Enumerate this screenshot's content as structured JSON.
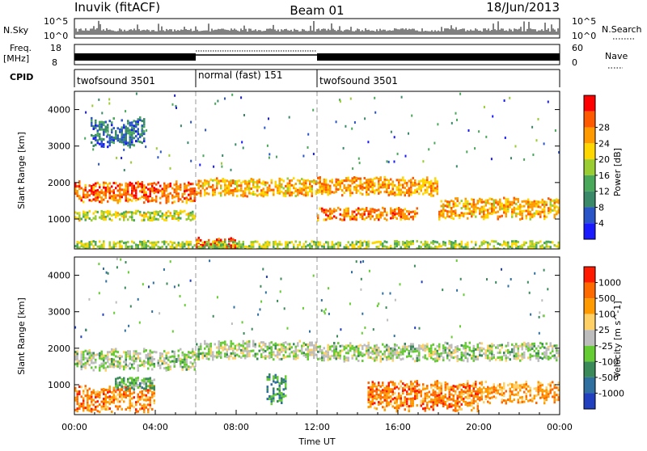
{
  "header": {
    "station": "Inuvik (fitACF)",
    "beam": "Beam 01",
    "date": "18/Jun/2013"
  },
  "top_panels": {
    "nsky_label": "N.Sky",
    "nsky_ticks": [
      "10^5",
      "10^0"
    ],
    "nsearch_label": "N.Search",
    "nsearch_ticks": [
      "10^5",
      "10^0"
    ],
    "freq_label": "Freq.",
    "freq_unit": "[MHz]",
    "freq_ticks": [
      "18",
      "8"
    ],
    "nave_label": "Nave",
    "nave_ticks": [
      "60",
      "0"
    ],
    "cpid_label": "CPID",
    "cpid_segments": [
      {
        "label": "twofsound 3501",
        "start_h": 0,
        "end_h": 6
      },
      {
        "label": "normal (fast) 151",
        "start_h": 6,
        "end_h": 12
      },
      {
        "label": "twofsound 3501",
        "start_h": 12,
        "end_h": 24
      }
    ]
  },
  "chart_data": [
    {
      "type": "heatmap",
      "name": "power",
      "ylabel": "Slant Range [km]",
      "xlabel": "",
      "xlim": [
        0,
        24
      ],
      "ylim": [
        180,
        4500
      ],
      "yticks": [
        "1000",
        "2000",
        "3000",
        "4000"
      ],
      "ytick_values": [
        1000,
        2000,
        3000,
        4000
      ],
      "colorbar_label": "Power [dB]",
      "colorbar_ticks": [
        "4",
        "8",
        "12",
        "16",
        "20",
        "24",
        "28"
      ],
      "colorbar_colors": [
        "#1a1aff",
        "#2a55c8",
        "#3a8a6a",
        "#4aa85a",
        "#9acd32",
        "#ffd700",
        "#ff9a00",
        "#ff5a00",
        "#ff0000"
      ],
      "bands": [
        {
          "start_h": 0.0,
          "end_h": 6.0,
          "center_km": 1750,
          "width_km": 500,
          "level": 0.85
        },
        {
          "start_h": 6.0,
          "end_h": 12.0,
          "center_km": 1900,
          "width_km": 400,
          "level": 0.7
        },
        {
          "start_h": 12.0,
          "end_h": 18.0,
          "center_km": 1900,
          "width_km": 450,
          "level": 0.75
        },
        {
          "start_h": 18.0,
          "end_h": 24.0,
          "center_km": 1300,
          "width_km": 500,
          "level": 0.7
        },
        {
          "start_h": 0.0,
          "end_h": 6.0,
          "center_km": 1100,
          "width_km": 250,
          "level": 0.55
        },
        {
          "start_h": 6.0,
          "end_h": 8.0,
          "center_km": 330,
          "width_km": 300,
          "level": 0.95
        },
        {
          "start_h": 0.0,
          "end_h": 24.0,
          "center_km": 300,
          "width_km": 200,
          "level": 0.5
        },
        {
          "start_h": 12.0,
          "end_h": 17.0,
          "center_km": 1150,
          "width_km": 300,
          "level": 0.8
        },
        {
          "start_h": 0.8,
          "end_h": 3.5,
          "center_km": 3400,
          "width_km": 700,
          "level": 0.2
        }
      ]
    },
    {
      "type": "heatmap",
      "name": "velocity",
      "ylabel": "Slant Range [km]",
      "xlabel": "Time UT",
      "xlim": [
        0,
        24
      ],
      "ylim": [
        180,
        4500
      ],
      "xticks": [
        "00:00",
        "04:00",
        "08:00",
        "12:00",
        "16:00",
        "20:00",
        "00:00"
      ],
      "xtick_values": [
        0,
        4,
        8,
        12,
        16,
        20,
        24
      ],
      "yticks": [
        "1000",
        "2000",
        "3000",
        "4000"
      ],
      "ytick_values": [
        1000,
        2000,
        3000,
        4000
      ],
      "colorbar_label": "Velocity [m s^-1]",
      "colorbar_ticks": [
        "1000",
        "500",
        "100",
        "25",
        "-25",
        "-100",
        "-500",
        "-1000"
      ],
      "colorbar_colors": [
        "#2040c0",
        "#3070a0",
        "#3a8a5a",
        "#66cc33",
        "#bdbdbd",
        "#ffd066",
        "#ff9a00",
        "#ff6a00",
        "#ff1a00"
      ],
      "bands": [
        {
          "start_h": 0.0,
          "end_h": 6.0,
          "center_km": 1700,
          "width_km": 500,
          "level": 0.45
        },
        {
          "start_h": 6.0,
          "end_h": 12.0,
          "center_km": 1950,
          "width_km": 450,
          "level": 0.45
        },
        {
          "start_h": 12.0,
          "end_h": 24.0,
          "center_km": 1900,
          "width_km": 450,
          "level": 0.45
        },
        {
          "start_h": 0.0,
          "end_h": 4.0,
          "center_km": 650,
          "width_km": 600,
          "level": 0.8
        },
        {
          "start_h": 14.5,
          "end_h": 20.0,
          "center_km": 700,
          "width_km": 700,
          "level": 0.82
        },
        {
          "start_h": 9.5,
          "end_h": 10.5,
          "center_km": 900,
          "width_km": 700,
          "level": 0.25
        },
        {
          "start_h": 20.0,
          "end_h": 24.0,
          "center_km": 800,
          "width_km": 500,
          "level": 0.75
        },
        {
          "start_h": 2.0,
          "end_h": 4.0,
          "center_km": 1050,
          "width_km": 300,
          "level": 0.35
        }
      ]
    }
  ]
}
